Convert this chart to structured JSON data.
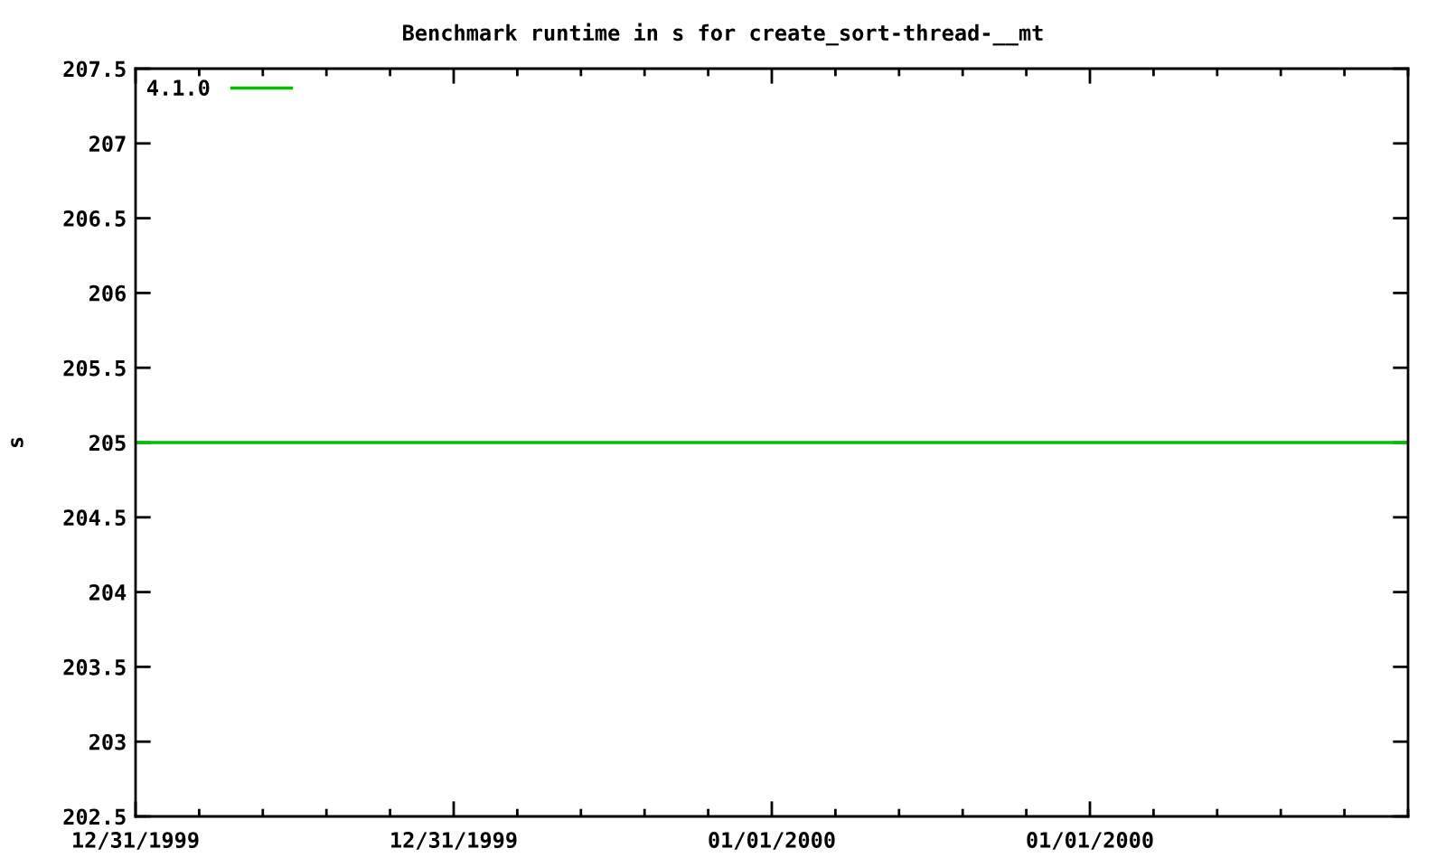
{
  "chart_data": {
    "type": "line",
    "title": "Benchmark runtime in s for create_sort-thread-__mt",
    "ylabel": "s",
    "series": [
      {
        "name": "4.1.0",
        "color": "#00c000",
        "x": [
          "1999-12-31T00:00",
          "2000-01-02T00:00"
        ],
        "values": [
          205,
          205
        ]
      }
    ],
    "xlim": [
      "1999-12-31T00:00",
      "2000-01-02T00:00"
    ],
    "xticks": [
      {
        "value": "1999-12-31T00:00",
        "label": "12/31/1999"
      },
      {
        "value": "1999-12-31T12:00",
        "label": "12/31/1999"
      },
      {
        "value": "2000-01-01T00:00",
        "label": "01/01/2000"
      },
      {
        "value": "2000-01-01T12:00",
        "label": "01/01/2000"
      }
    ],
    "ylim": [
      202.5,
      207.5
    ],
    "yticks": [
      202.5,
      203,
      203.5,
      204,
      204.5,
      205,
      205.5,
      206,
      206.5,
      207,
      207.5
    ],
    "grid": false,
    "legend": "top left",
    "marker": "none",
    "line_style": "solid"
  }
}
